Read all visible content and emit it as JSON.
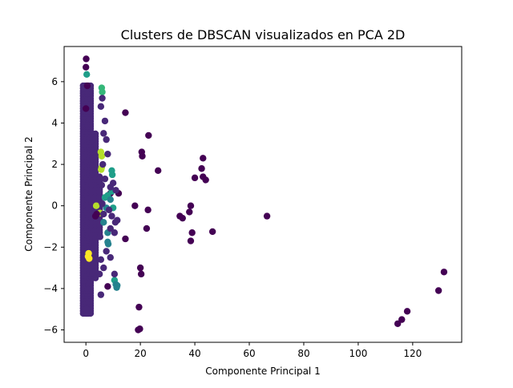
{
  "chart_data": {
    "type": "scatter",
    "title": "Clusters de DBSCAN visualizados en PCA 2D",
    "xlabel": "Componente Principal 1",
    "ylabel": "Componente Principal 2",
    "xlim": [
      -8,
      138
    ],
    "ylim": [
      -6.6,
      7.7
    ],
    "xticks": [
      0,
      20,
      40,
      60,
      80,
      100,
      120
    ],
    "yticks": [
      -6,
      -4,
      -2,
      0,
      2,
      4,
      6
    ],
    "grid": false,
    "legend": "none",
    "colors": {
      "noise": "#440154",
      "main": "#482878",
      "c_blue": "#31688e",
      "c_teal": "#26828e",
      "c_green": "#1f9e89",
      "c_mint": "#35b779",
      "c_lime": "#b5de2b",
      "c_yellow": "#fde725"
    },
    "main_band": {
      "color_key": "main",
      "x_range": [
        -1,
        5
      ],
      "y_range": [
        -5.2,
        5.8
      ]
    },
    "points": [
      {
        "x": 0.1,
        "y": 7.1,
        "c": "noise"
      },
      {
        "x": 0.0,
        "y": 6.7,
        "c": "noise"
      },
      {
        "x": 0.3,
        "y": 6.35,
        "c": "c_green"
      },
      {
        "x": 14.5,
        "y": 4.5,
        "c": "noise"
      },
      {
        "x": 23.0,
        "y": 3.4,
        "c": "noise"
      },
      {
        "x": 20.5,
        "y": 2.6,
        "c": "noise"
      },
      {
        "x": 20.7,
        "y": 2.4,
        "c": "noise"
      },
      {
        "x": 26.5,
        "y": 1.7,
        "c": "noise"
      },
      {
        "x": 43.0,
        "y": 2.3,
        "c": "noise"
      },
      {
        "x": 42.5,
        "y": 1.8,
        "c": "noise"
      },
      {
        "x": 40.0,
        "y": 1.35,
        "c": "noise"
      },
      {
        "x": 43.0,
        "y": 1.4,
        "c": "noise"
      },
      {
        "x": 44.0,
        "y": 1.25,
        "c": "noise"
      },
      {
        "x": 9.0,
        "y": 0.6,
        "c": "noise"
      },
      {
        "x": 12.0,
        "y": 0.6,
        "c": "noise"
      },
      {
        "x": 18.0,
        "y": 0.0,
        "c": "noise"
      },
      {
        "x": 22.8,
        "y": -0.2,
        "c": "noise"
      },
      {
        "x": 38.5,
        "y": 0.0,
        "c": "noise"
      },
      {
        "x": 38.0,
        "y": -0.3,
        "c": "noise"
      },
      {
        "x": 34.5,
        "y": -0.5,
        "c": "noise"
      },
      {
        "x": 35.5,
        "y": -0.6,
        "c": "noise"
      },
      {
        "x": 66.5,
        "y": -0.5,
        "c": "noise"
      },
      {
        "x": 22.3,
        "y": -1.1,
        "c": "noise"
      },
      {
        "x": 39.0,
        "y": -1.3,
        "c": "noise"
      },
      {
        "x": 46.5,
        "y": -1.25,
        "c": "noise"
      },
      {
        "x": 38.5,
        "y": -1.7,
        "c": "noise"
      },
      {
        "x": 14.5,
        "y": -1.6,
        "c": "noise"
      },
      {
        "x": 20.0,
        "y": -3.0,
        "c": "noise"
      },
      {
        "x": 20.3,
        "y": -3.3,
        "c": "noise"
      },
      {
        "x": 8.0,
        "y": -3.9,
        "c": "noise"
      },
      {
        "x": 19.5,
        "y": -4.9,
        "c": "noise"
      },
      {
        "x": 19.2,
        "y": -6.0,
        "c": "noise"
      },
      {
        "x": 19.8,
        "y": -5.95,
        "c": "noise"
      },
      {
        "x": 131.5,
        "y": -3.2,
        "c": "noise"
      },
      {
        "x": 129.5,
        "y": -4.1,
        "c": "noise"
      },
      {
        "x": 118.0,
        "y": -5.1,
        "c": "noise"
      },
      {
        "x": 116.0,
        "y": -5.5,
        "c": "noise"
      },
      {
        "x": 114.5,
        "y": -5.7,
        "c": "noise"
      },
      {
        "x": 5.8,
        "y": 5.7,
        "c": "c_mint"
      },
      {
        "x": 6.0,
        "y": 5.5,
        "c": "c_mint"
      },
      {
        "x": 5.5,
        "y": 2.6,
        "c": "c_lime"
      },
      {
        "x": 5.8,
        "y": 2.4,
        "c": "c_lime"
      },
      {
        "x": 5.8,
        "y": 1.85,
        "c": "c_lime"
      },
      {
        "x": 5.6,
        "y": 1.75,
        "c": "c_lime"
      },
      {
        "x": 9.5,
        "y": 1.7,
        "c": "c_green"
      },
      {
        "x": 9.7,
        "y": 1.5,
        "c": "c_green"
      },
      {
        "x": 7.0,
        "y": 0.4,
        "c": "c_green"
      },
      {
        "x": 8.0,
        "y": 0.5,
        "c": "c_green"
      },
      {
        "x": 9.5,
        "y": 0.7,
        "c": "c_green"
      },
      {
        "x": 9.0,
        "y": 0.3,
        "c": "c_teal"
      },
      {
        "x": 7.5,
        "y": -0.1,
        "c": "c_teal"
      },
      {
        "x": 3.8,
        "y": 0.0,
        "c": "c_lime"
      },
      {
        "x": 5.2,
        "y": -0.35,
        "c": "c_lime"
      },
      {
        "x": 10.0,
        "y": -0.1,
        "c": "c_green"
      },
      {
        "x": 6.5,
        "y": -0.8,
        "c": "c_teal"
      },
      {
        "x": 8.0,
        "y": -1.3,
        "c": "c_teal"
      },
      {
        "x": 8.0,
        "y": -1.75,
        "c": "c_teal"
      },
      {
        "x": 8.2,
        "y": -1.85,
        "c": "c_teal"
      },
      {
        "x": 10.5,
        "y": -3.6,
        "c": "c_green"
      },
      {
        "x": 11.0,
        "y": -3.8,
        "c": "c_teal"
      },
      {
        "x": 11.3,
        "y": -3.95,
        "c": "c_teal"
      },
      {
        "x": 11.5,
        "y": -3.85,
        "c": "c_teal"
      },
      {
        "x": 4.0,
        "y": -0.4,
        "c": "noise"
      },
      {
        "x": 3.5,
        "y": -0.5,
        "c": "noise"
      },
      {
        "x": 1.0,
        "y": -2.3,
        "c": "c_yellow"
      },
      {
        "x": 1.2,
        "y": -2.55,
        "c": "c_yellow"
      },
      {
        "x": 0.8,
        "y": -2.45,
        "c": "c_yellow"
      },
      {
        "x": 0.4,
        "y": -5.2,
        "c": "main"
      },
      {
        "x": 0.2,
        "y": -5.0,
        "c": "main"
      },
      {
        "x": 0.5,
        "y": 5.8,
        "c": "noise"
      },
      {
        "x": 0.0,
        "y": 4.7,
        "c": "noise"
      },
      {
        "x": 7.5,
        "y": 3.2,
        "c": "main"
      },
      {
        "x": 8.0,
        "y": 2.5,
        "c": "main"
      },
      {
        "x": 7.0,
        "y": 4.1,
        "c": "main"
      },
      {
        "x": 6.5,
        "y": 3.5,
        "c": "main"
      },
      {
        "x": 10.0,
        "y": 1.1,
        "c": "main"
      },
      {
        "x": 11.0,
        "y": 0.75,
        "c": "main"
      },
      {
        "x": 9.0,
        "y": 0.9,
        "c": "main"
      },
      {
        "x": 7.0,
        "y": 1.3,
        "c": "main"
      },
      {
        "x": 8.5,
        "y": -0.2,
        "c": "main"
      },
      {
        "x": 9.5,
        "y": -0.5,
        "c": "main"
      },
      {
        "x": 10.8,
        "y": -0.8,
        "c": "main"
      },
      {
        "x": 11.5,
        "y": -0.7,
        "c": "main"
      },
      {
        "x": 9.0,
        "y": -1.1,
        "c": "main"
      },
      {
        "x": 10.5,
        "y": -1.3,
        "c": "main"
      },
      {
        "x": 7.5,
        "y": -2.2,
        "c": "main"
      },
      {
        "x": 9.0,
        "y": -2.5,
        "c": "main"
      },
      {
        "x": 10.5,
        "y": -3.3,
        "c": "main"
      },
      {
        "x": 6.5,
        "y": -3.0,
        "c": "main"
      },
      {
        "x": 5.0,
        "y": -3.3,
        "c": "main"
      },
      {
        "x": 5.5,
        "y": -4.3,
        "c": "main"
      },
      {
        "x": 6.0,
        "y": 0.1,
        "c": "main"
      },
      {
        "x": 6.5,
        "y": -0.4,
        "c": "main"
      },
      {
        "x": 5.8,
        "y": 1.0,
        "c": "main"
      },
      {
        "x": 6.2,
        "y": 2.0,
        "c": "main"
      },
      {
        "x": 5.5,
        "y": 4.8,
        "c": "main"
      },
      {
        "x": 6.0,
        "y": 5.2,
        "c": "main"
      },
      {
        "x": 5.2,
        "y": -1.5,
        "c": "main"
      },
      {
        "x": 5.5,
        "y": -2.6,
        "c": "main"
      }
    ]
  }
}
